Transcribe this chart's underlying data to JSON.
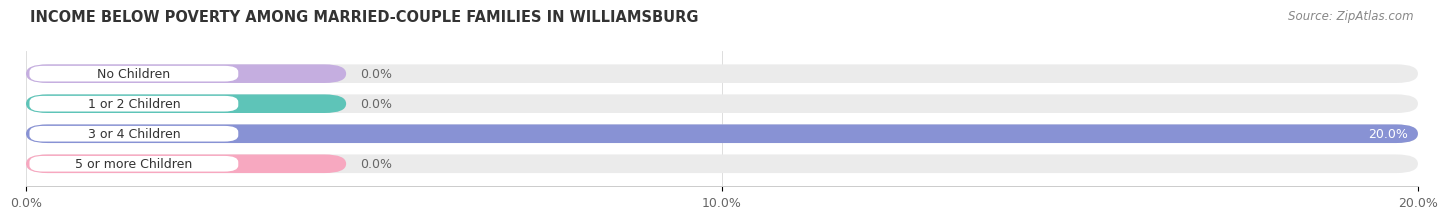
{
  "title": "INCOME BELOW POVERTY AMONG MARRIED-COUPLE FAMILIES IN WILLIAMSBURG",
  "source": "Source: ZipAtlas.com",
  "categories": [
    "No Children",
    "1 or 2 Children",
    "3 or 4 Children",
    "5 or more Children"
  ],
  "values": [
    0.0,
    0.0,
    20.0,
    0.0
  ],
  "bar_colors": [
    "#c5aee0",
    "#5ec4b8",
    "#8892d4",
    "#f7a8c0"
  ],
  "bar_bg_color": "#ebebeb",
  "xlim": [
    0,
    20.0
  ],
  "xticks": [
    0.0,
    10.0,
    20.0
  ],
  "xtick_labels": [
    "0.0%",
    "10.0%",
    "20.0%"
  ],
  "value_label_color": "#666666",
  "title_color": "#333333",
  "source_color": "#888888",
  "bg_color": "#ffffff",
  "bar_height": 0.62,
  "label_fontsize": 9.0,
  "title_fontsize": 10.5,
  "source_fontsize": 8.5
}
